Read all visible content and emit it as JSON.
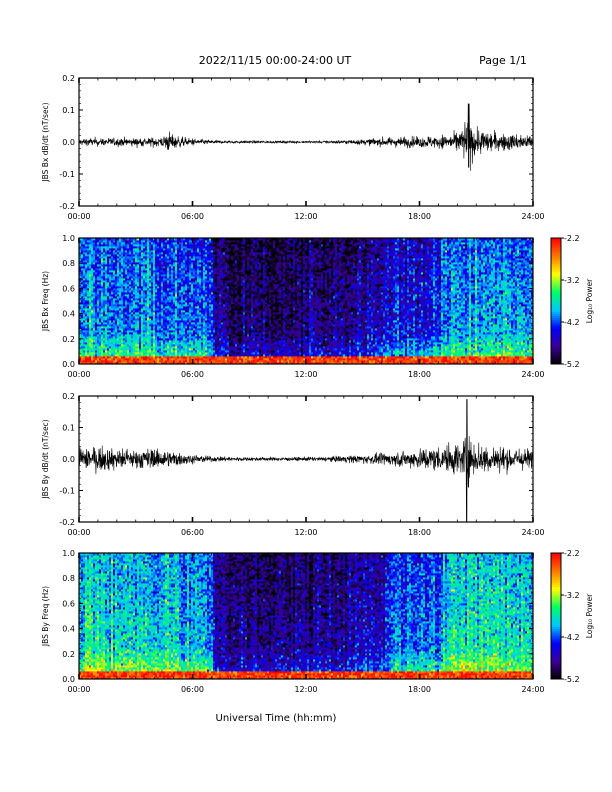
{
  "header": {
    "date_range": "2022/11/15  00:00-24:00 UT",
    "page": "Page 1/1"
  },
  "x_axis": {
    "title": "Universal Time (hh:mm)",
    "tick_labels": [
      "00:00",
      "06:00",
      "12:00",
      "18:00",
      "24:00"
    ],
    "tick_hours": [
      0,
      6,
      12,
      18,
      24
    ],
    "xlim_hours": [
      0,
      24
    ]
  },
  "colorbar": {
    "label": "Log₁₀ Power",
    "tick_labels": [
      "-2.2",
      "-3.2",
      "-4.2",
      "-5.2"
    ],
    "ticks": [
      -2.2,
      -3.2,
      -4.2,
      -5.2
    ],
    "range": [
      -5.2,
      -2.2
    ],
    "colormap": [
      "#000000",
      "#3b0096",
      "#0000ff",
      "#00c8ff",
      "#00ff64",
      "#ffff00",
      "#ff7800",
      "#ff0000"
    ]
  },
  "chart_data": [
    {
      "type": "line",
      "ylabel": "JBS Bx dB/dt (nT/sec)",
      "ylim": [
        -0.2,
        0.2
      ],
      "ytick_labels": [
        "0.2",
        "0.1",
        "0.0",
        "-0.1",
        "-0.2"
      ],
      "yticks": [
        0.2,
        0.1,
        0.0,
        -0.1,
        -0.2
      ],
      "series": [
        {
          "x_hours": [
            0,
            1,
            2,
            3,
            4,
            4.9,
            5,
            6,
            7,
            8,
            9,
            10,
            11,
            12,
            13,
            14,
            15,
            16,
            17,
            18,
            19,
            20,
            20.6,
            21,
            22,
            23,
            24
          ],
          "envelope": [
            0.015,
            0.018,
            0.018,
            0.02,
            0.02,
            0.045,
            0.03,
            0.015,
            0.008,
            0.006,
            0.006,
            0.005,
            0.005,
            0.005,
            0.006,
            0.008,
            0.012,
            0.018,
            0.022,
            0.025,
            0.03,
            0.04,
            0.11,
            0.06,
            0.04,
            0.035,
            0.035
          ],
          "peak": {
            "x_hour": 20.6,
            "max": 0.12,
            "min": -0.08
          }
        }
      ]
    },
    {
      "type": "heatmap",
      "ylabel": "JBS Bx Freq (Hz)",
      "ylim": [
        0.0,
        1.0
      ],
      "ytick_labels": [
        "1.0",
        "0.8",
        "0.6",
        "0.4",
        "0.2",
        "0.0"
      ],
      "yticks": [
        1.0,
        0.8,
        0.6,
        0.4,
        0.2,
        0.0
      ],
      "value_range": [
        -5.2,
        -2.2
      ],
      "time_profile": {
        "x_hours": [
          0,
          1,
          2,
          3,
          4,
          5,
          6,
          7,
          7.2,
          8,
          9,
          10,
          11,
          12,
          13,
          14,
          15,
          16,
          17,
          18,
          19,
          19.3,
          20,
          21,
          22,
          23,
          24
        ],
        "mean_log_power": [
          -3.9,
          -3.9,
          -4.0,
          -3.9,
          -4.0,
          -3.9,
          -4.1,
          -4.1,
          -4.7,
          -4.8,
          -4.8,
          -4.8,
          -4.8,
          -4.8,
          -4.8,
          -4.7,
          -4.6,
          -4.5,
          -4.3,
          -4.3,
          -4.3,
          -4.0,
          -3.9,
          -3.8,
          -3.8,
          -3.9,
          -3.9
        ]
      },
      "low_freq_enhancement": {
        "below_hz": 0.06,
        "log_power": -2.4
      }
    },
    {
      "type": "line",
      "ylabel": "JBS By dB/dt (nT/sec)",
      "ylim": [
        -0.2,
        0.2
      ],
      "ytick_labels": [
        "0.2",
        "0.1",
        "0.0",
        "-0.1",
        "-0.2"
      ],
      "yticks": [
        0.2,
        0.1,
        0.0,
        -0.1,
        -0.2
      ],
      "series": [
        {
          "x_hours": [
            0,
            0.5,
            1,
            2,
            3,
            4,
            5,
            6,
            7,
            8,
            9,
            10,
            11,
            12,
            13,
            14,
            15,
            16,
            17,
            18,
            19,
            20,
            20.5,
            20.7,
            21,
            22,
            23,
            24
          ],
          "envelope": [
            0.05,
            0.07,
            0.06,
            0.05,
            0.045,
            0.045,
            0.035,
            0.02,
            0.012,
            0.01,
            0.009,
            0.008,
            0.008,
            0.009,
            0.01,
            0.015,
            0.02,
            0.025,
            0.035,
            0.045,
            0.055,
            0.07,
            0.12,
            0.09,
            0.07,
            0.06,
            0.05,
            0.05
          ],
          "peak": {
            "x_hour": 20.5,
            "max": 0.19,
            "min": -0.2
          }
        }
      ]
    },
    {
      "type": "heatmap",
      "ylabel": "JBS By Freq (Hz)",
      "ylim": [
        0.0,
        1.0
      ],
      "ytick_labels": [
        "1.0",
        "0.8",
        "0.6",
        "0.4",
        "0.2",
        "0.0"
      ],
      "yticks": [
        1.0,
        0.8,
        0.6,
        0.4,
        0.2,
        0.0
      ],
      "value_range": [
        -5.2,
        -2.2
      ],
      "time_profile": {
        "x_hours": [
          0,
          1,
          2,
          3,
          4,
          5,
          6,
          7,
          7.2,
          8,
          9,
          10,
          11,
          12,
          13,
          14,
          15,
          16,
          16.5,
          17,
          18,
          19,
          19.3,
          20,
          21,
          22,
          23,
          24
        ],
        "mean_log_power": [
          -3.6,
          -3.6,
          -3.7,
          -3.7,
          -3.8,
          -3.7,
          -3.8,
          -3.9,
          -4.6,
          -4.7,
          -4.7,
          -4.7,
          -4.7,
          -4.7,
          -4.6,
          -4.6,
          -4.5,
          -4.4,
          -4.0,
          -4.0,
          -4.0,
          -4.1,
          -3.7,
          -3.6,
          -3.6,
          -3.6,
          -3.7,
          -3.6
        ]
      },
      "low_freq_enhancement": {
        "below_hz": 0.06,
        "log_power": -2.4
      }
    }
  ]
}
